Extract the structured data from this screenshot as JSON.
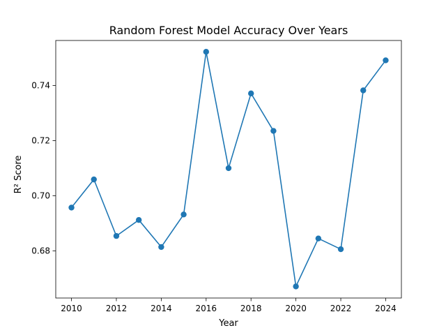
{
  "chart_data": {
    "type": "line",
    "title": "Random Forest Model Accuracy Over Years",
    "xlabel": "Year",
    "ylabel": "R² Score",
    "x": [
      2010,
      2011,
      2012,
      2013,
      2014,
      2015,
      2016,
      2017,
      2018,
      2019,
      2020,
      2021,
      2022,
      2023,
      2024
    ],
    "series": [
      {
        "values": [
          0.6957,
          0.7059,
          0.6854,
          0.6912,
          0.6814,
          0.6932,
          0.7522,
          0.71,
          0.7371,
          0.7235,
          0.6671,
          0.6845,
          0.6806,
          0.7382,
          0.7491
        ]
      }
    ],
    "xlim": [
      2009.3,
      2024.7
    ],
    "ylim": [
      0.6629,
      0.7563
    ],
    "xticks": [
      2010,
      2012,
      2014,
      2016,
      2018,
      2020,
      2022,
      2024
    ],
    "yticks": [
      0.68,
      0.7,
      0.72,
      0.74
    ],
    "ytick_labels": [
      "0.68",
      "0.70",
      "0.72",
      "0.74"
    ],
    "grid": false,
    "colors": {
      "line": "#1f77b4"
    }
  }
}
